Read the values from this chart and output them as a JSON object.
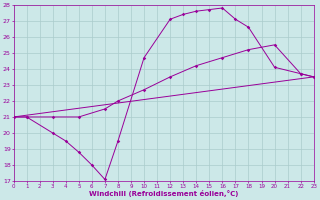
{
  "xlabel": "Windchill (Refroidissement éolien,°C)",
  "bg_color": "#cce8e8",
  "grid_color": "#aacccc",
  "line_color": "#990099",
  "xmin": 0,
  "xmax": 23,
  "ymin": 17,
  "ymax": 28,
  "line1_x": [
    0,
    1,
    3,
    4,
    5,
    6,
    7,
    8,
    10,
    12,
    13,
    14,
    15,
    16,
    17,
    18,
    20,
    22,
    23
  ],
  "line1_y": [
    21,
    21,
    20,
    19.5,
    18.8,
    18.0,
    17.1,
    19.5,
    24.7,
    27.1,
    27.4,
    27.6,
    27.7,
    27.8,
    27.1,
    26.6,
    24.1,
    23.7,
    23.5
  ],
  "line2_x": [
    0,
    1,
    3,
    5,
    7,
    8,
    10,
    12,
    14,
    16,
    18,
    20,
    22,
    23
  ],
  "line2_y": [
    21,
    21,
    21,
    21,
    21.5,
    22.0,
    22.7,
    23.5,
    24.2,
    24.7,
    25.2,
    25.5,
    23.7,
    23.5
  ],
  "line3_x": [
    0,
    23
  ],
  "line3_y": [
    21,
    23.5
  ],
  "yticks": [
    17,
    18,
    19,
    20,
    21,
    22,
    23,
    24,
    25,
    26,
    27,
    28
  ],
  "xticks": [
    0,
    1,
    2,
    3,
    4,
    5,
    6,
    7,
    8,
    9,
    10,
    11,
    12,
    13,
    14,
    15,
    16,
    17,
    18,
    19,
    20,
    21,
    22,
    23
  ],
  "marker_size": 1.8,
  "line_width": 0.7,
  "tick_fontsize": 4.5,
  "xlabel_fontsize": 5.0
}
